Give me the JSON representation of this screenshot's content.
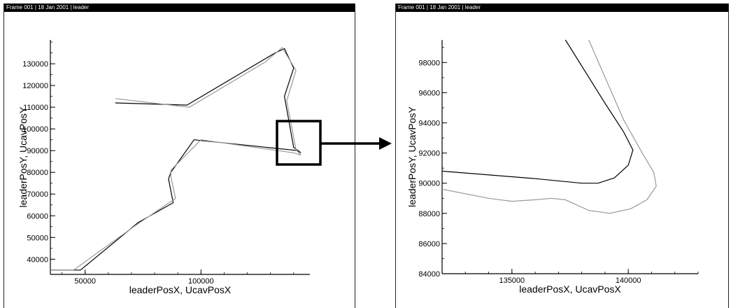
{
  "frames": [
    {
      "header": "Frame 001 | 18 Jan 2001 | leader",
      "chart_data": {
        "type": "line",
        "xlabel": "leaderPosX, UcavPosX",
        "ylabel": "leaderPosY, UcavPosY",
        "xlim": [
          35000,
          147000
        ],
        "ylim": [
          33000,
          141000
        ],
        "xticks": [
          50000,
          100000
        ],
        "yticks": [
          40000,
          50000,
          60000,
          70000,
          80000,
          90000,
          100000,
          110000,
          120000,
          130000
        ],
        "annotations": [
          "zoom-box",
          "arrow"
        ],
        "series": [
          {
            "color": "#000000",
            "x": [
              35000,
              48000,
              73000,
              88000,
              86000,
              87000,
              97000,
              142000,
              143000,
              140000,
              136000,
              140000,
              136000,
              132000,
              94000,
              63000
            ],
            "y": [
              35000,
              35000,
              57000,
              66000,
              77000,
              80000,
              95000,
              90000,
              89000,
              91500,
              115000,
              128000,
              137000,
              135000,
              111000,
              112000
            ]
          },
          {
            "color": "#999999",
            "x": [
              35000,
              45000,
              71000,
              89000,
              87000,
              87000,
              100000,
              140000,
              143000,
              141000,
              137000,
              141000,
              135000,
              128000,
              95000,
              63000
            ],
            "y": [
              35000,
              35000,
              55000,
              68000,
              78000,
              81000,
              95000,
              89000,
              88000,
              90500,
              113000,
              127000,
              137500,
              131000,
              110000,
              114000
            ]
          }
        ]
      }
    },
    {
      "header": "Frame 001 | 18 Jan 2001 | leader",
      "chart_data": {
        "type": "line",
        "xlabel": "leaderPosX, UcavPosX",
        "ylabel": "leaderPosY, UcavPosY",
        "xlim": [
          132000,
          143000
        ],
        "ylim": [
          84000,
          99500
        ],
        "xticks": [
          135000,
          140000
        ],
        "yticks": [
          84000,
          86000,
          88000,
          90000,
          92000,
          94000,
          96000,
          98000
        ],
        "series": [
          {
            "color": "#000000",
            "x": [
              132000,
              136000,
              138000,
              138700,
              139400,
              140000,
              140200,
              139800,
              139000,
              137300
            ],
            "y": [
              90800,
              90300,
              90000,
              90000,
              90350,
              91200,
              92200,
              93400,
              95300,
              99500
            ]
          },
          {
            "color": "#999999",
            "x": [
              132000,
              134000,
              135000,
              136000,
              136700,
              137300,
              138300,
              139200,
              140100,
              140800,
              141200,
              141100,
              140600,
              139800,
              138300
            ],
            "y": [
              89600,
              89000,
              88800,
              88900,
              89000,
              88900,
              88200,
              88000,
              88300,
              88900,
              89800,
              90700,
              92000,
              94200,
              99500
            ]
          }
        ]
      }
    }
  ]
}
